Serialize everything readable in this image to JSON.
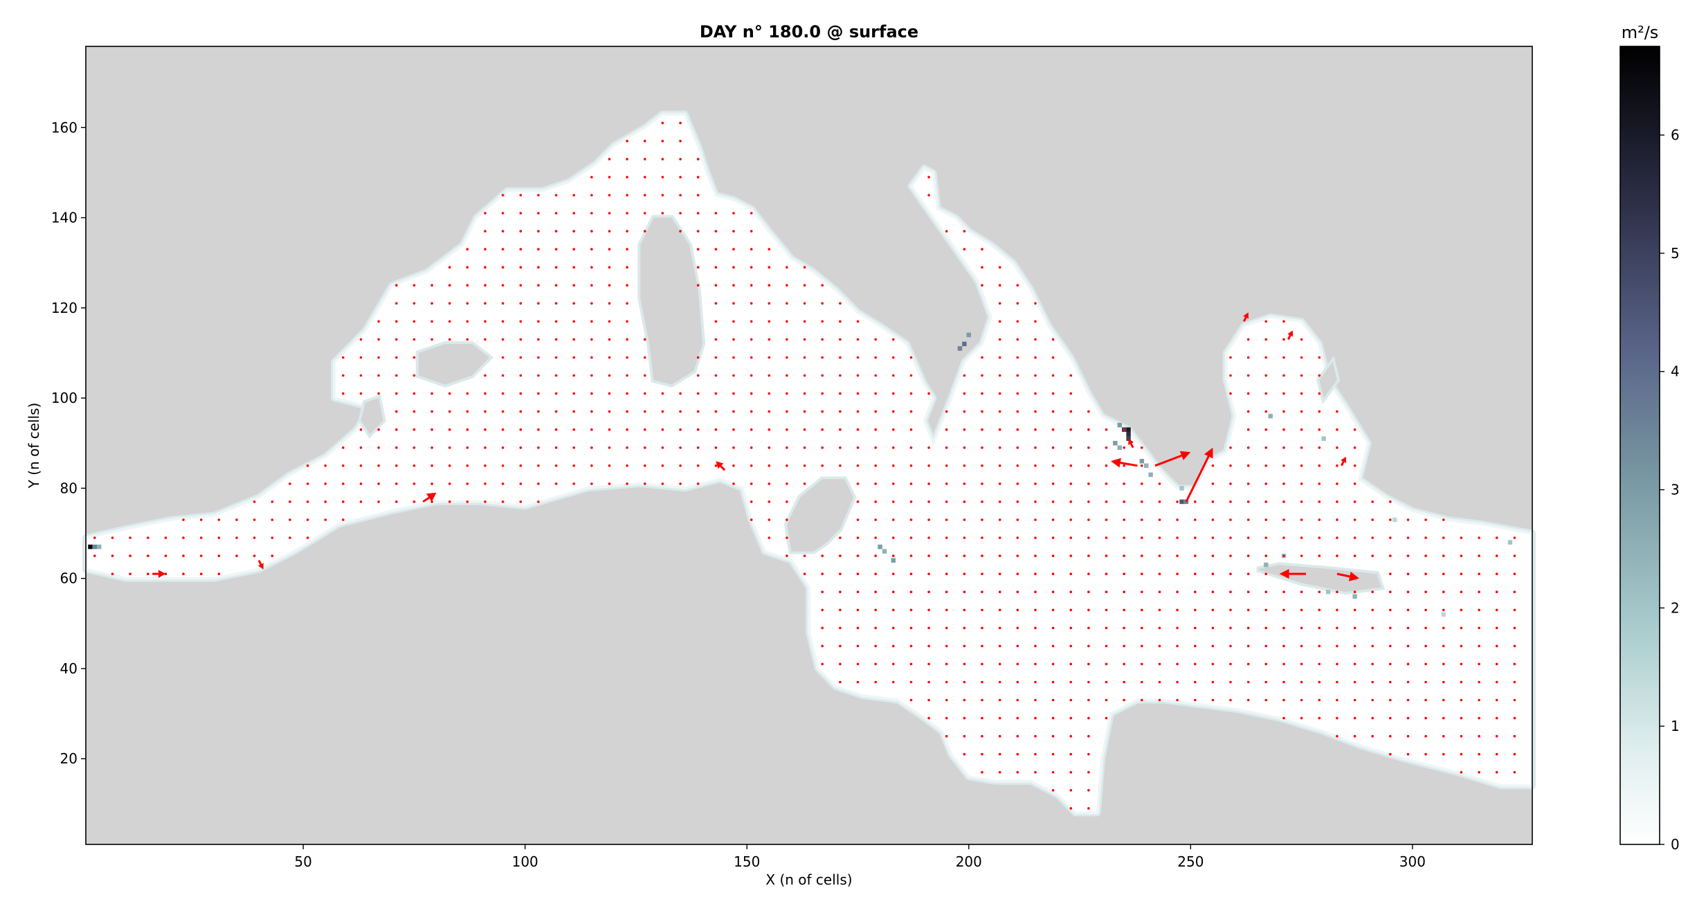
{
  "chart_data": {
    "type": "heatmap",
    "title": "DAY n° 180.0 @ surface",
    "xlabel": "X (n of cells)",
    "ylabel": "Y (n of cells)",
    "xlim": [
      1,
      327
    ],
    "ylim": [
      1,
      178
    ],
    "xticks": [
      50,
      100,
      150,
      200,
      250,
      300
    ],
    "yticks": [
      20,
      40,
      60,
      80,
      100,
      120,
      140,
      160
    ],
    "grid": false,
    "background_color": "#d3d3d3",
    "colormap": "bone_r",
    "colorbar": {
      "label": "m²/s",
      "range": [
        0,
        6.75
      ],
      "ticks": [
        0,
        1,
        2,
        3,
        4,
        5,
        6
      ]
    },
    "quiver": {
      "color": "#ff0000",
      "grid_step_cells": 4,
      "notable_vectors": [
        {
          "x": 249,
          "y": 77,
          "u": 3,
          "v": 6
        },
        {
          "x": 238,
          "y": 85,
          "u": -3,
          "v": 0.5
        },
        {
          "x": 242,
          "y": 85,
          "u": 4,
          "v": 1.5
        },
        {
          "x": 276,
          "y": 61,
          "u": -3,
          "v": 0
        },
        {
          "x": 283,
          "y": 61,
          "u": 2.5,
          "v": -0.5
        },
        {
          "x": 77,
          "y": 77,
          "u": 1.5,
          "v": 1
        },
        {
          "x": 145,
          "y": 84,
          "u": -1,
          "v": 1
        },
        {
          "x": 16,
          "y": 61,
          "u": 1.5,
          "v": 0
        },
        {
          "x": 40,
          "y": 64,
          "u": 0.5,
          "v": -1
        },
        {
          "x": 237,
          "y": 89,
          "u": -0.5,
          "v": 1
        },
        {
          "x": 284,
          "y": 85,
          "u": 0.5,
          "v": 1
        },
        {
          "x": 272,
          "y": 113,
          "u": 0.5,
          "v": 1
        },
        {
          "x": 262,
          "y": 117,
          "u": 0.5,
          "v": 1
        }
      ]
    },
    "high_value_cells": [
      {
        "x": 2,
        "y": 67,
        "v": 6.5
      },
      {
        "x": 3,
        "y": 67,
        "v": 3.5
      },
      {
        "x": 4,
        "y": 67,
        "v": 2.5
      },
      {
        "x": 235,
        "y": 93,
        "v": 5.0
      },
      {
        "x": 236,
        "y": 93,
        "v": 6.0
      },
      {
        "x": 236,
        "y": 92,
        "v": 5.5
      },
      {
        "x": 236,
        "y": 91,
        "v": 5.0
      },
      {
        "x": 234,
        "y": 94,
        "v": 3.0
      },
      {
        "x": 233,
        "y": 90,
        "v": 3.0
      },
      {
        "x": 234,
        "y": 89,
        "v": 2.5
      },
      {
        "x": 239,
        "y": 86,
        "v": 3.0
      },
      {
        "x": 240,
        "y": 85,
        "v": 2.5
      },
      {
        "x": 241,
        "y": 83,
        "v": 2.5
      },
      {
        "x": 248,
        "y": 77,
        "v": 4.5
      },
      {
        "x": 249,
        "y": 77,
        "v": 3.5
      },
      {
        "x": 199,
        "y": 112,
        "v": 4.0
      },
      {
        "x": 198,
        "y": 111,
        "v": 3.5
      },
      {
        "x": 200,
        "y": 114,
        "v": 3.0
      },
      {
        "x": 180,
        "y": 67,
        "v": 3.0
      },
      {
        "x": 181,
        "y": 66,
        "v": 2.5
      },
      {
        "x": 183,
        "y": 64,
        "v": 3.0
      },
      {
        "x": 267,
        "y": 63,
        "v": 2.5
      },
      {
        "x": 271,
        "y": 65,
        "v": 2.0
      },
      {
        "x": 281,
        "y": 57,
        "v": 2.0
      },
      {
        "x": 287,
        "y": 56,
        "v": 2.5
      },
      {
        "x": 287,
        "y": 60,
        "v": 2.0
      },
      {
        "x": 268,
        "y": 96,
        "v": 2.5
      },
      {
        "x": 280,
        "y": 91,
        "v": 2.0
      },
      {
        "x": 248,
        "y": 80,
        "v": 2.0
      },
      {
        "x": 322,
        "y": 68,
        "v": 2.0
      },
      {
        "x": 307,
        "y": 52,
        "v": 1.5
      },
      {
        "x": 296,
        "y": 73,
        "v": 1.5
      }
    ]
  }
}
